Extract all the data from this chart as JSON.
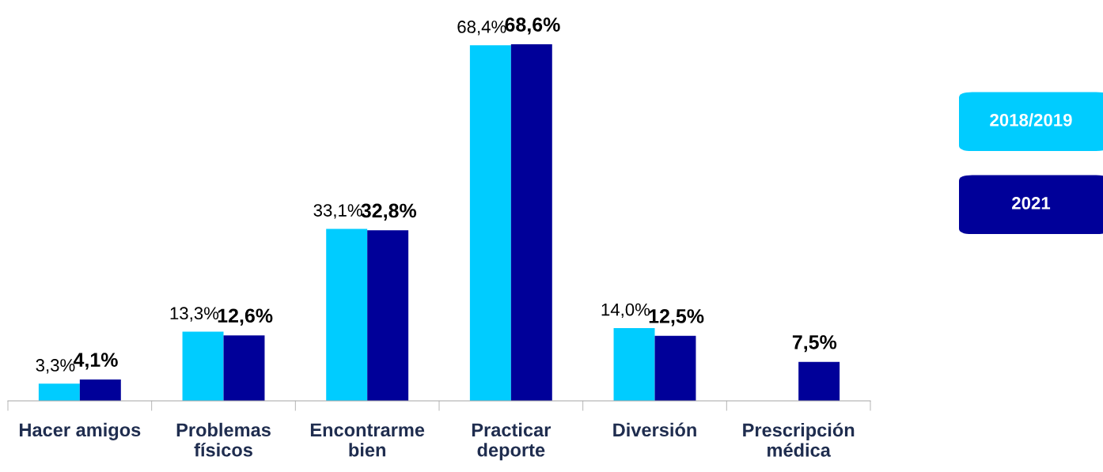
{
  "chart_data": {
    "type": "bar",
    "categories": [
      "Hacer amigos",
      "Problemas\nfísicos",
      "Encontrarme\nbien",
      "Practicar\ndeporte",
      "Diversión",
      "Prescripción\nmédica"
    ],
    "series": [
      {
        "name": "2018/2019",
        "color": "#00ccff",
        "values": [
          3.3,
          13.3,
          33.1,
          68.4,
          14.0,
          null
        ],
        "value_labels": [
          "3,3%",
          "13,3%",
          "33,1%",
          "68,4%",
          "14,0%",
          null
        ]
      },
      {
        "name": "2021",
        "color": "#000099",
        "values": [
          4.1,
          12.6,
          32.8,
          68.6,
          12.5,
          7.5
        ],
        "value_labels": [
          "4,1%",
          "12,6%",
          "32,8%",
          "68,6%",
          "12,5%",
          "7,5%"
        ]
      }
    ],
    "legend": "right",
    "tick_labels": "x",
    "grid": false
  }
}
